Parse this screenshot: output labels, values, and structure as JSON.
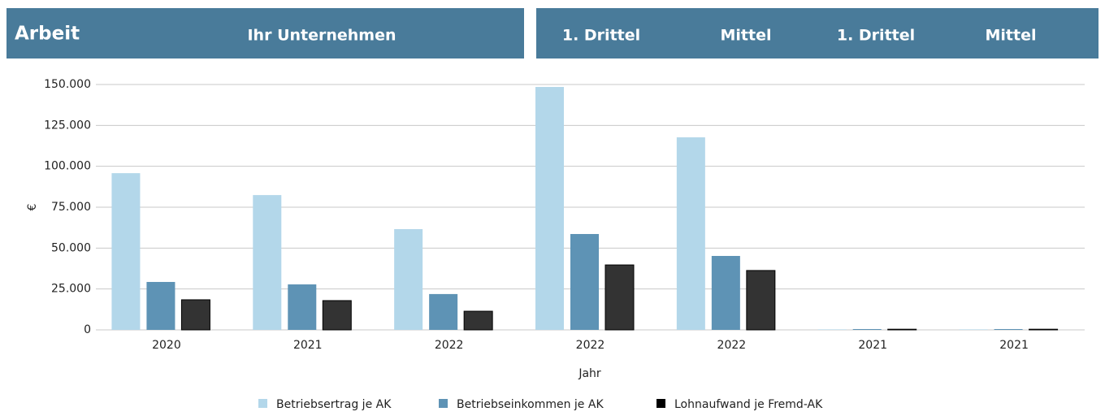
{
  "header": {
    "title": "Arbeit",
    "left": "Ihr Unternehmen",
    "right": [
      "1. Drittel",
      "Mittel",
      "1. Drittel",
      "Mittel"
    ]
  },
  "chart_data": {
    "type": "bar",
    "categories": [
      "2020",
      "2021",
      "2022",
      "2022",
      "2022",
      "2021",
      "2021"
    ],
    "x_label": "Jahr",
    "y_label": "€",
    "series": [
      {
        "name": "Betriebsertrag je AK",
        "color": "#b3d7ea",
        "values": [
          95800,
          82400,
          61600,
          148500,
          117700,
          300,
          300
        ]
      },
      {
        "name": "Betriebseinkommen je AK",
        "color": "#5e93b5",
        "values": [
          29300,
          27800,
          21900,
          58600,
          45200,
          500,
          500
        ]
      },
      {
        "name": "Lohnaufwand je Fremd-AK",
        "color": "#333333",
        "values": [
          18400,
          17900,
          11400,
          39700,
          36300,
          400,
          400
        ]
      }
    ],
    "ylim": [
      0,
      150000
    ],
    "yticks": [
      0,
      {
        "value": 25000,
        "label": "25.000"
      },
      {
        "value": 50000,
        "label": "50.000"
      },
      {
        "value": 75000,
        "label": "75.000"
      },
      {
        "value": 100000,
        "label": "100.000"
      },
      {
        "value": 125000,
        "label": "125.000"
      },
      {
        "value": 150000,
        "label": "150.000"
      }
    ],
    "grid": true,
    "legend": "bottom"
  }
}
